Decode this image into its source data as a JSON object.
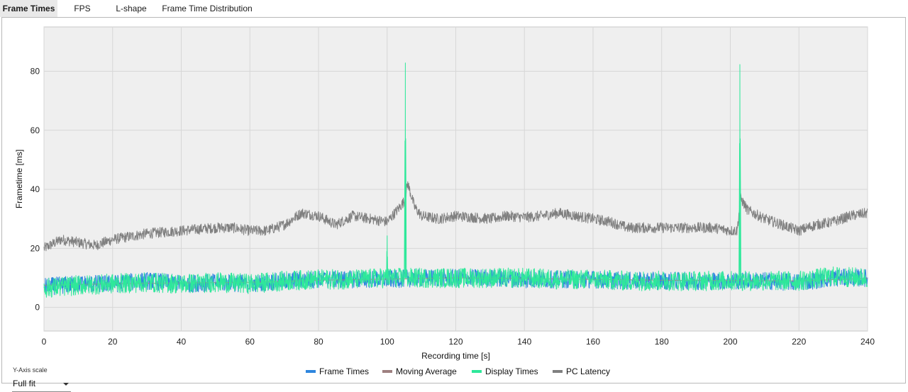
{
  "tabs": [
    {
      "label": "Frame Times",
      "active": true
    },
    {
      "label": "FPS",
      "active": false
    },
    {
      "label": "L-shape",
      "active": false
    },
    {
      "label": "Frame Time Distribution",
      "active": false
    }
  ],
  "y_axis_scale": {
    "label": "Y-Axis scale",
    "selected": "Full fit"
  },
  "chart_data": {
    "type": "line",
    "xlabel": "Recording time [s]",
    "ylabel": "Frametime [ms]",
    "xlim": [
      0,
      240
    ],
    "ylim": [
      -8,
      95
    ],
    "x_ticks": [
      0,
      20,
      40,
      60,
      80,
      100,
      120,
      140,
      160,
      180,
      200,
      220,
      240
    ],
    "y_ticks": [
      0,
      20,
      40,
      60,
      80
    ],
    "grid": true,
    "legend_position": "bottom-center",
    "series": [
      {
        "name": "Frame Times",
        "color": "#2e86de",
        "x": [
          0,
          10,
          20,
          30,
          40,
          50,
          60,
          70,
          80,
          90,
          100,
          110,
          120,
          130,
          140,
          150,
          160,
          170,
          180,
          190,
          200,
          210,
          220,
          230,
          240
        ],
        "y": [
          7,
          8,
          8,
          9,
          8,
          8.5,
          8,
          9,
          9.5,
          9.5,
          9.5,
          10,
          10,
          10,
          9.5,
          9.5,
          9.5,
          9,
          9,
          9,
          9,
          9,
          8.5,
          10,
          10
        ]
      },
      {
        "name": "Moving Average",
        "color": "#9e8080",
        "x": [
          0,
          20,
          40,
          60,
          80,
          100,
          120,
          140,
          160,
          180,
          200,
          220,
          240
        ],
        "y": [
          7.5,
          8,
          8.3,
          8.5,
          9.2,
          9.6,
          10,
          9.8,
          9.5,
          9.2,
          9.1,
          9,
          9.8
        ]
      },
      {
        "name": "Display Times",
        "color": "#2ee89a",
        "x": [
          0,
          10,
          20,
          30,
          40,
          50,
          60,
          70,
          80,
          90,
          99.8,
          100,
          100.2,
          105,
          105.3,
          105.6,
          110,
          120,
          130,
          140,
          150,
          160,
          170,
          180,
          190,
          202.5,
          202.8,
          203.1,
          210,
          220,
          230,
          240
        ],
        "y": [
          6.5,
          7.5,
          8,
          8.5,
          8,
          8.5,
          8,
          9,
          9.5,
          9.5,
          10,
          24,
          10,
          10,
          81,
          10,
          10,
          10,
          10,
          10,
          9.5,
          9.5,
          9,
          9,
          9,
          9,
          82,
          9,
          9,
          9,
          10.5,
          10
        ]
      },
      {
        "name": "PC Latency",
        "color": "#808080",
        "x": [
          0,
          5,
          10,
          15,
          20,
          25,
          30,
          35,
          40,
          45,
          50,
          55,
          60,
          65,
          70,
          75,
          80,
          85,
          90,
          95,
          100,
          103,
          105,
          106,
          108,
          110,
          115,
          120,
          125,
          130,
          135,
          140,
          145,
          150,
          155,
          160,
          165,
          170,
          175,
          180,
          185,
          190,
          195,
          200,
          202,
          203,
          205,
          210,
          215,
          220,
          225,
          230,
          235,
          240
        ],
        "y": [
          20,
          23,
          22,
          21,
          23,
          24,
          25,
          25.5,
          26,
          26.5,
          27,
          27,
          26,
          26,
          28,
          32,
          31,
          28,
          31,
          30,
          29,
          33,
          36,
          42,
          34,
          31,
          30,
          31,
          30.5,
          30,
          31,
          30.5,
          31,
          32,
          31,
          30,
          29,
          27,
          27,
          27,
          27,
          27,
          27,
          26,
          26,
          37,
          33,
          30,
          28,
          26,
          28,
          29,
          31,
          32
        ]
      }
    ]
  }
}
